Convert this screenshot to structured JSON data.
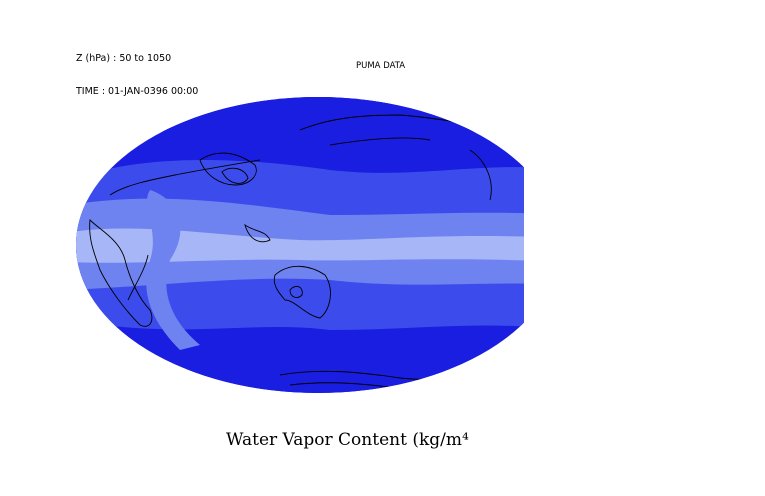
{
  "header": {
    "z_range": "Z (hPa) : 50 to 1050",
    "time": "TIME : 01-JAN-0396 00:00"
  },
  "title": "PUMA DATA",
  "caption": "Water Vapor Content (kg/m⁴",
  "colors": {
    "deep": "#1a1ee0",
    "mid": "#3c4cec",
    "light": "#6e83f0",
    "pale": "#a6b6f6",
    "outline": "#000000",
    "background": "#ffffff"
  }
}
